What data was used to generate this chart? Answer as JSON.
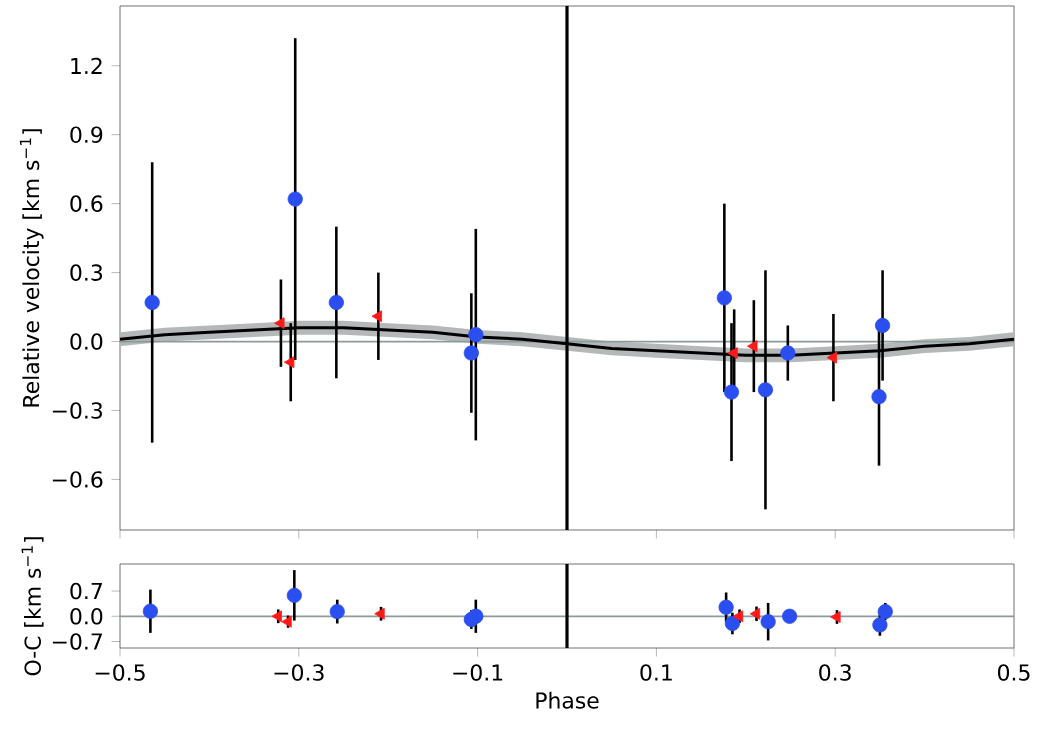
{
  "chart_data": [
    {
      "type": "scatter",
      "ylabel": "Relative velocity [km s$^{−1}$]",
      "xlim": [
        -0.5,
        0.5
      ],
      "ylim": [
        -0.82,
        1.46
      ],
      "tick_labels": "y",
      "xticks": [
        {
          "value": -0.5,
          "label": null
        },
        {
          "value": -0.3,
          "label": null
        },
        {
          "value": -0.1,
          "label": null
        },
        {
          "value": 0.1,
          "label": null
        },
        {
          "value": 0.3,
          "label": null
        },
        {
          "value": 0.5,
          "label": null
        }
      ],
      "yticks": [
        {
          "value": -0.6,
          "label": "−0.6"
        },
        {
          "value": -0.3,
          "label": "−0.3"
        },
        {
          "value": 0.0,
          "label": "0.0"
        },
        {
          "value": 0.3,
          "label": "0.3"
        },
        {
          "value": 0.6,
          "label": "0.6"
        },
        {
          "value": 0.9,
          "label": "0.9"
        },
        {
          "value": 1.2,
          "label": "1.2"
        }
      ],
      "ref_lines": [
        {
          "axis": "y",
          "value": 0,
          "color": "#8c9a9a"
        },
        {
          "axis": "x",
          "value": 0,
          "color": "#000000"
        }
      ],
      "series": [
        {
          "type": "line",
          "color": "#000000",
          "marker": "none",
          "x": [
            -0.5,
            -0.45,
            -0.4,
            -0.35,
            -0.3,
            -0.25,
            -0.2,
            -0.15,
            -0.1,
            -0.05,
            0,
            0.05,
            0.1,
            0.15,
            0.2,
            0.25,
            0.3,
            0.35,
            0.4,
            0.45,
            0.5
          ],
          "values": [
            0.01,
            0.03,
            0.04,
            0.05,
            0.06,
            0.06,
            0.05,
            0.04,
            0.02,
            0.01,
            -0.01,
            -0.03,
            -0.04,
            -0.05,
            -0.06,
            -0.06,
            -0.05,
            -0.04,
            -0.02,
            -0.01,
            0.01
          ],
          "lower": [
            -0.02,
            0.0,
            0.01,
            0.02,
            0.03,
            0.03,
            0.02,
            0.01,
            -0.01,
            -0.02,
            -0.04,
            -0.06,
            -0.07,
            -0.08,
            -0.09,
            -0.09,
            -0.08,
            -0.07,
            -0.05,
            -0.04,
            -0.02
          ],
          "upper": [
            0.04,
            0.06,
            0.07,
            0.08,
            0.09,
            0.09,
            0.08,
            0.07,
            0.05,
            0.04,
            0.02,
            0.0,
            -0.01,
            -0.02,
            -0.03,
            -0.03,
            -0.02,
            -0.01,
            0.01,
            0.02,
            0.04
          ]
        },
        {
          "color": "#2b4ef0",
          "marker": "circle",
          "x": [
            -0.464,
            -0.304,
            -0.258,
            -0.102,
            -0.107,
            0.176,
            0.184,
            0.222,
            0.247,
            0.353,
            0.349
          ],
          "values": [
            0.17,
            0.62,
            0.17,
            0.03,
            -0.05,
            0.19,
            -0.22,
            -0.21,
            -0.05,
            0.07,
            -0.24
          ],
          "errors": [
            0.61,
            0.7,
            0.33,
            0.46,
            0.26,
            0.41,
            0.3,
            0.52,
            0.12,
            0.24,
            0.3
          ]
        },
        {
          "color": "#ff1a1a",
          "marker": "triangle",
          "x": [
            -0.32,
            -0.309,
            -0.211,
            0.187,
            0.209,
            0.298
          ],
          "values": [
            0.08,
            -0.09,
            0.11,
            -0.05,
            -0.02,
            -0.07
          ],
          "errors": [
            0.19,
            0.17,
            0.19,
            0.19,
            0.2,
            0.19
          ]
        }
      ]
    },
    {
      "type": "scatter",
      "xlabel": "Phase",
      "ylabel": "O-C [km s$^{−1}$]",
      "xlim": [
        -0.5,
        0.5
      ],
      "ylim": [
        -0.88,
        1.45
      ],
      "xticks": [
        {
          "value": -0.5,
          "label": "−0.5"
        },
        {
          "value": -0.3,
          "label": "−0.3"
        },
        {
          "value": -0.1,
          "label": "−0.1"
        },
        {
          "value": 0.1,
          "label": "0.1"
        },
        {
          "value": 0.3,
          "label": "0.3"
        },
        {
          "value": 0.5,
          "label": "0.5"
        }
      ],
      "yticks": [
        {
          "value": -0.7,
          "label": "−0.7"
        },
        {
          "value": 0.0,
          "label": "0.0"
        },
        {
          "value": 0.7,
          "label": "0.7"
        }
      ],
      "ref_lines": [
        {
          "axis": "y",
          "value": 0,
          "color": "#8c9a9a"
        },
        {
          "axis": "x",
          "value": 0,
          "color": "#000000"
        }
      ],
      "series": [
        {
          "color": "#2b4ef0",
          "marker": "circle",
          "x": [
            -0.466,
            -0.305,
            -0.257,
            -0.102,
            -0.107,
            0.178,
            0.185,
            0.225,
            0.249,
            0.356,
            0.35
          ],
          "values": [
            0.14,
            0.58,
            0.13,
            0.0,
            -0.09,
            0.25,
            -0.2,
            -0.15,
            0.0,
            0.13,
            -0.24
          ],
          "errors": [
            0.6,
            0.7,
            0.33,
            0.46,
            0.26,
            0.41,
            0.3,
            0.52,
            null,
            0.24,
            0.3
          ]
        },
        {
          "color": "#ff1a1a",
          "marker": "triangle",
          "x": [
            -0.323,
            -0.312,
            -0.208,
            0.193,
            0.212,
            0.302
          ],
          "values": [
            0.0,
            -0.15,
            0.07,
            0.0,
            0.07,
            -0.02
          ],
          "errors": [
            0.19,
            0.17,
            0.19,
            0.19,
            0.2,
            0.19
          ]
        }
      ]
    }
  ]
}
